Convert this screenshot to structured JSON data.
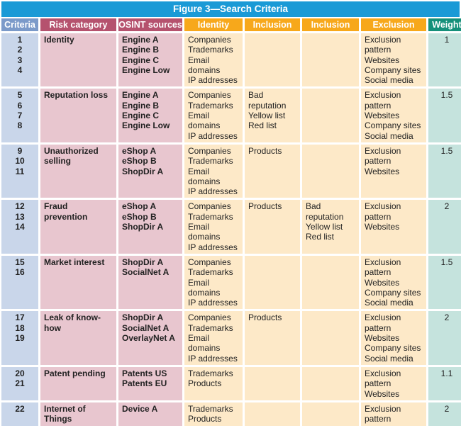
{
  "title": "Figure 3—Search Criteria",
  "headers": [
    "Criteria",
    "Risk category",
    "OSINT sources",
    "Identity",
    "Inclusion",
    "Inclusion",
    "Exclusion",
    "Weight"
  ],
  "colors": {
    "title": "#1a9ad6",
    "criteria": "#7b9ac9",
    "risk": "#b5526e",
    "search": "#f7a81b",
    "weight": "#15907a"
  },
  "rows": [
    {
      "criteria": "1\n2\n3\n4",
      "risk": "Identity",
      "sources": "Engine A\nEngine B\nEngine C\nEngine Low",
      "identity": "Companies\nTrademarks\nEmail\ndomains\nIP addresses",
      "inclusion1": "",
      "inclusion2": "",
      "exclusion": "Exclusion\npattern\nWebsites\nCompany sites\nSocial media",
      "weight": "1"
    },
    {
      "criteria": "5\n6\n7\n8",
      "risk": "Reputation loss",
      "sources": "Engine A\nEngine B\nEngine C\nEngine Low",
      "identity": "Companies\nTrademarks\nEmail\ndomains\nIP addresses",
      "inclusion1": "Bad\nreputation\nYellow list\nRed list",
      "inclusion2": "",
      "exclusion": "Exclusion\npattern\nWebsites\nCompany sites\nSocial media",
      "weight": "1.5"
    },
    {
      "criteria": "9\n10\n11",
      "risk": "Unauthorized\nselling",
      "sources": "eShop A\neShop B\nShopDir A",
      "identity": "Companies\nTrademarks\nEmail\ndomains\nIP addresses",
      "inclusion1": "Products",
      "inclusion2": "",
      "exclusion": "Exclusion\npattern\nWebsites",
      "weight": "1.5"
    },
    {
      "criteria": "12\n13\n14",
      "risk": "Fraud prevention",
      "sources": "eShop A\neShop B\nShopDir A",
      "identity": "Companies\nTrademarks\nEmail\ndomains\nIP addresses",
      "inclusion1": "Products",
      "inclusion2": "Bad\nreputation\nYellow list\nRed list",
      "exclusion": "Exclusion\npattern\nWebsites",
      "weight": "2"
    },
    {
      "criteria": "15\n16",
      "risk": "Market interest",
      "sources": "ShopDir A\nSocialNet A",
      "identity": "Companies\nTrademarks\nEmail\ndomains\nIP addresses",
      "inclusion1": "",
      "inclusion2": "",
      "exclusion": "Exclusion\npattern\nWebsites\nCompany sites\nSocial media",
      "weight": "1.5"
    },
    {
      "criteria": "17\n18\n19",
      "risk": "Leak of know-how",
      "sources": "ShopDir A\nSocialNet A\nOverlayNet A",
      "identity": "Companies\nTrademarks\nEmail\ndomains\nIP addresses",
      "inclusion1": "Products",
      "inclusion2": "",
      "exclusion": "Exclusion\npattern\nWebsites\nCompany sites\nSocial media",
      "weight": "2"
    },
    {
      "criteria": "20\n21",
      "risk": "Patent pending",
      "sources": "Patents US\nPatents EU",
      "identity": "Trademarks\nProducts",
      "inclusion1": "",
      "inclusion2": "",
      "exclusion": "Exclusion\npattern\nWebsites",
      "weight": "1.1"
    },
    {
      "criteria": "22",
      "risk": "Internet of Things",
      "sources": "Device A",
      "identity": "Trademarks\nProducts",
      "inclusion1": "",
      "inclusion2": "",
      "exclusion": "Exclusion\npattern",
      "weight": "2"
    }
  ]
}
